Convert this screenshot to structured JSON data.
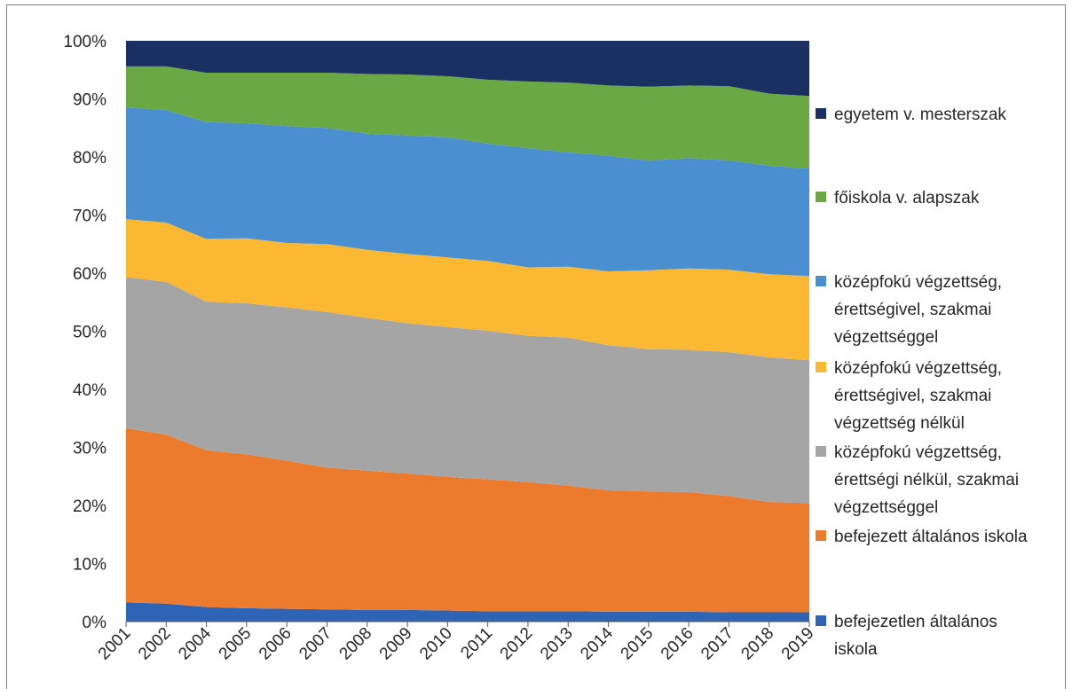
{
  "chart_data": {
    "type": "area",
    "stacked": "percent",
    "categories": [
      "2001",
      "2002",
      "2004",
      "2005",
      "2006",
      "2007",
      "2008",
      "2009",
      "2010",
      "2011",
      "2012",
      "2013",
      "2014",
      "2015",
      "2016",
      "2017",
      "2018",
      "2019"
    ],
    "ylim": [
      0,
      100
    ],
    "yticks": [
      "0%",
      "10%",
      "20%",
      "30%",
      "40%",
      "50%",
      "60%",
      "70%",
      "80%",
      "90%",
      "100%"
    ],
    "grid": false,
    "legend_position": "right",
    "series": [
      {
        "name": "befejezetlen általános iskola",
        "color": "#2e64b5",
        "values": [
          3.3,
          3.1,
          2.5,
          2.3,
          2.2,
          2.1,
          2.0,
          2.0,
          1.9,
          1.8,
          1.8,
          1.8,
          1.7,
          1.7,
          1.7,
          1.6,
          1.6,
          1.6
        ]
      },
      {
        "name": "befejezett általános iskola",
        "color": "#ed7b2e",
        "values": [
          30.0,
          29.1,
          27.0,
          26.5,
          25.5,
          24.4,
          24.0,
          23.5,
          23.0,
          22.7,
          22.2,
          21.6,
          20.9,
          20.7,
          20.6,
          20.0,
          19.0,
          18.8
        ]
      },
      {
        "name": "középfokú végzettség, érettségi nélkül, szakmai végzettséggel",
        "color": "#a5a5a5",
        "values": [
          26.0,
          26.3,
          25.6,
          26.0,
          26.4,
          26.8,
          26.3,
          25.9,
          25.8,
          25.6,
          25.2,
          25.5,
          25.0,
          24.5,
          24.5,
          24.8,
          24.9,
          24.6
        ]
      },
      {
        "name": "középfokú végzettség, érettségivel, szakmai végzettség nélkül",
        "color": "#fbb933",
        "values": [
          10.0,
          10.2,
          10.8,
          11.2,
          11.1,
          11.7,
          11.7,
          11.9,
          12.0,
          12.0,
          11.8,
          12.2,
          12.7,
          13.6,
          14.0,
          14.2,
          14.3,
          14.5
        ]
      },
      {
        "name": "középfokú végzettség, érettségivel, szakmai végzettséggel",
        "color": "#4a90d0",
        "values": [
          19.2,
          19.4,
          20.1,
          19.8,
          20.1,
          20.0,
          20.0,
          20.4,
          20.7,
          20.2,
          20.5,
          19.7,
          19.9,
          18.9,
          19.0,
          18.8,
          18.7,
          18.5
        ]
      },
      {
        "name": "főiskola v. alapszak",
        "color": "#6aa843",
        "values": [
          7.1,
          7.5,
          8.5,
          8.7,
          9.2,
          9.5,
          10.3,
          10.5,
          10.5,
          11.0,
          11.5,
          12.0,
          12.1,
          12.7,
          12.5,
          12.8,
          12.4,
          12.5
        ]
      },
      {
        "name": "egyetem v. mesterszak",
        "color": "#1a3063",
        "values": [
          4.4,
          4.4,
          5.5,
          5.5,
          5.5,
          5.5,
          5.7,
          5.8,
          6.1,
          6.7,
          7.0,
          7.2,
          7.7,
          7.9,
          7.7,
          7.8,
          9.1,
          9.5
        ]
      }
    ],
    "legend_order": [
      {
        "label_lines": [
          "egyetem v. mesterszak"
        ]
      },
      {
        "label_lines": [
          "főiskola v. alapszak"
        ]
      },
      {
        "label_lines": [
          "középfokú végzettség,",
          "érettségivel, szakmai",
          "végzettséggel"
        ]
      },
      {
        "label_lines": [
          "középfokú végzettség,",
          "érettségivel, szakmai",
          "végzettség nélkül"
        ]
      },
      {
        "label_lines": [
          "középfokú végzettség,",
          "érettségi nélkül, szakmai",
          "végzettséggel"
        ]
      },
      {
        "label_lines": [
          "befejezett általános iskola"
        ]
      },
      {
        "label_lines": [
          "befejezetlen általános",
          "iskola"
        ]
      }
    ]
  }
}
